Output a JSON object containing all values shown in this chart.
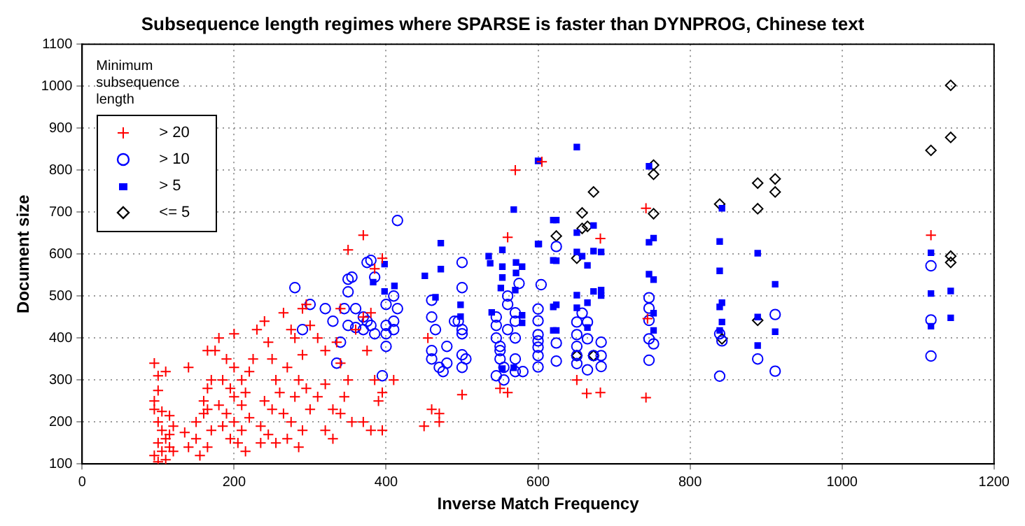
{
  "chart_data": {
    "type": "scatter",
    "title": "Subsequence length regimes where SPARSE is faster than DYNPROG, Chinese text",
    "xlabel": "Inverse Match Frequency",
    "ylabel": "Document size",
    "legend_title": "Minimum subsequence length",
    "xlim": [
      0,
      1200
    ],
    "xticks": [
      0,
      200,
      400,
      600,
      800,
      1000,
      1200
    ],
    "ylim": [
      100,
      1100
    ],
    "yticks": [
      100,
      200,
      300,
      400,
      500,
      600,
      700,
      800,
      900,
      1000,
      1100
    ],
    "grid": true,
    "legend": "top left",
    "series": [
      {
        "name": "> 20",
        "color": "#ff0000",
        "marker": "cross",
        "x": [
          95,
          100,
          110,
          100,
          95,
          100,
          105,
          110,
          100,
          115,
          105,
          95,
          110,
          100,
          120,
          115,
          120,
          95,
          105,
          115,
          140,
          135,
          140,
          150,
          150,
          155,
          160,
          160,
          165,
          170,
          165,
          175,
          165,
          170,
          165,
          180,
          190,
          200,
          185,
          195,
          200,
          210,
          180,
          190,
          200,
          210,
          185,
          195,
          205,
          215,
          220,
          215,
          210,
          220,
          230,
          225,
          200,
          240,
          245,
          250,
          255,
          260,
          240,
          250,
          265,
          275,
          235,
          245,
          255,
          270,
          285,
          235,
          290,
          300,
          280,
          295,
          285,
          270,
          290,
          280,
          275,
          265,
          290,
          300,
          310,
          295,
          320,
          310,
          320,
          330,
          340,
          345,
          350,
          355,
          330,
          320,
          340,
          335,
          360,
          370,
          375,
          385,
          390,
          380,
          395,
          370,
          340,
          380,
          395,
          410,
          350,
          370,
          385,
          395,
          455,
          460,
          470,
          470,
          450,
          500,
          560,
          570,
          550,
          560,
          605,
          651,
          664,
          682,
          742,
          742,
          744,
          682,
          1117
        ],
        "values": [
          340,
          310,
          320,
          275,
          230,
          200,
          180,
          160,
          150,
          140,
          130,
          120,
          110,
          105,
          130,
          170,
          190,
          250,
          225,
          215,
          330,
          175,
          140,
          200,
          160,
          120,
          250,
          220,
          280,
          300,
          370,
          370,
          230,
          180,
          140,
          400,
          350,
          330,
          300,
          280,
          260,
          240,
          240,
          220,
          200,
          180,
          190,
          160,
          150,
          130,
          210,
          270,
          300,
          320,
          420,
          350,
          410,
          440,
          390,
          350,
          300,
          270,
          250,
          230,
          220,
          200,
          190,
          170,
          150,
          160,
          140,
          150,
          180,
          230,
          260,
          280,
          300,
          330,
          360,
          400,
          420,
          460,
          470,
          430,
          400,
          480,
          370,
          260,
          290,
          230,
          220,
          260,
          300,
          200,
          160,
          180,
          340,
          390,
          420,
          450,
          370,
          300,
          250,
          180,
          180,
          200,
          470,
          460,
          270,
          300,
          610,
          645,
          565,
          590,
          400,
          230,
          220,
          200,
          190,
          265,
          640,
          800,
          280,
          270,
          820,
          300,
          268,
          270,
          258,
          709,
          446,
          637,
          645
        ]
      },
      {
        "name": "> 10",
        "color": "#0000ff",
        "marker": "circle",
        "x": [
          280,
          290,
          300,
          320,
          330,
          340,
          335,
          350,
          355,
          350,
          345,
          360,
          370,
          375,
          350,
          360,
          370,
          380,
          385,
          375,
          380,
          385,
          400,
          400,
          400,
          400,
          395,
          415,
          410,
          415,
          410,
          410,
          460,
          460,
          465,
          460,
          460,
          470,
          475,
          480,
          480,
          490,
          495,
          500,
          500,
          500,
          505,
          500,
          500,
          500,
          545,
          545,
          545,
          550,
          550,
          550,
          555,
          545,
          555,
          560,
          560,
          560,
          570,
          570,
          570,
          570,
          575,
          570,
          580,
          604,
          600,
          600,
          600,
          600,
          600,
          600,
          600,
          624,
          624,
          624,
          651,
          651,
          651,
          651,
          651,
          658,
          665,
          665,
          665,
          673,
          683,
          683,
          683,
          746,
          746,
          746,
          746,
          746,
          752,
          839,
          842,
          839,
          889,
          912,
          912,
          1117,
          1117,
          1117
        ],
        "values": [
          520,
          420,
          480,
          470,
          440,
          390,
          340,
          540,
          545,
          510,
          470,
          470,
          450,
          440,
          430,
          425,
          420,
          430,
          410,
          580,
          585,
          545,
          480,
          430,
          410,
          380,
          310,
          680,
          440,
          470,
          420,
          500,
          490,
          450,
          420,
          370,
          350,
          330,
          320,
          340,
          380,
          440,
          440,
          420,
          410,
          360,
          350,
          330,
          580,
          520,
          450,
          430,
          400,
          380,
          370,
          350,
          330,
          310,
          300,
          480,
          500,
          420,
          400,
          440,
          350,
          320,
          530,
          460,
          320,
          527,
          469,
          441,
          408,
          393,
          378,
          358,
          331,
          618,
          388,
          345,
          438,
          408,
          380,
          358,
          339,
          459,
          438,
          398,
          324,
          358,
          390,
          358,
          332,
          496,
          471,
          442,
          398,
          347,
          386,
          410,
          393,
          309,
          350,
          456,
          321,
          572,
          443,
          357
        ]
      },
      {
        "name": "> 5",
        "color": "#0000ff",
        "marker": "square",
        "x": [
          600,
          600,
          624,
          624,
          624,
          624,
          651,
          651,
          651,
          651,
          651,
          658,
          665,
          665,
          673,
          673,
          673,
          683,
          683,
          683,
          665,
          746,
          746,
          752,
          746,
          752,
          752,
          752,
          842,
          839,
          839,
          842,
          839,
          842,
          839,
          889,
          889,
          889,
          912,
          912,
          1117,
          1117,
          1117,
          1143,
          1143,
          398,
          398,
          383,
          411,
          451,
          465,
          472,
          472,
          498,
          498,
          535,
          537,
          539,
          553,
          553,
          553,
          551,
          571,
          571,
          570,
          579,
          579,
          579,
          568,
          601,
          553,
          568,
          620,
          620,
          620,
          620
        ],
        "values": [
          822,
          624,
          681,
          584,
          479,
          418,
          855,
          651,
          605,
          502,
          472,
          595,
          573,
          484,
          668,
          607,
          511,
          605,
          514,
          501,
          425,
          809,
          628,
          638,
          552,
          539,
          459,
          418,
          709,
          630,
          560,
          484,
          474,
          438,
          418,
          602,
          450,
          382,
          528,
          415,
          603,
          506,
          428,
          512,
          448,
          576,
          511,
          533,
          524,
          548,
          497,
          626,
          564,
          479,
          451,
          595,
          578,
          461,
          610,
          570,
          544,
          519,
          580,
          555,
          514,
          570,
          454,
          436,
          706,
          624,
          327,
          329,
          681,
          585,
          474,
          418
        ]
      },
      {
        "name": "<= 5",
        "color": "#000000",
        "marker": "diamond",
        "x": [
          624,
          651,
          658,
          658,
          665,
          673,
          651,
          673,
          752,
          752,
          752,
          839,
          889,
          889,
          889,
          912,
          912,
          842,
          1117,
          1143,
          1143,
          1143,
          1143
        ],
        "values": [
          643,
          590,
          698,
          661,
          666,
          748,
          358,
          358,
          812,
          790,
          696,
          719,
          769,
          708,
          442,
          779,
          748,
          398,
          847,
          878,
          1002,
          595,
          580
        ]
      }
    ]
  }
}
